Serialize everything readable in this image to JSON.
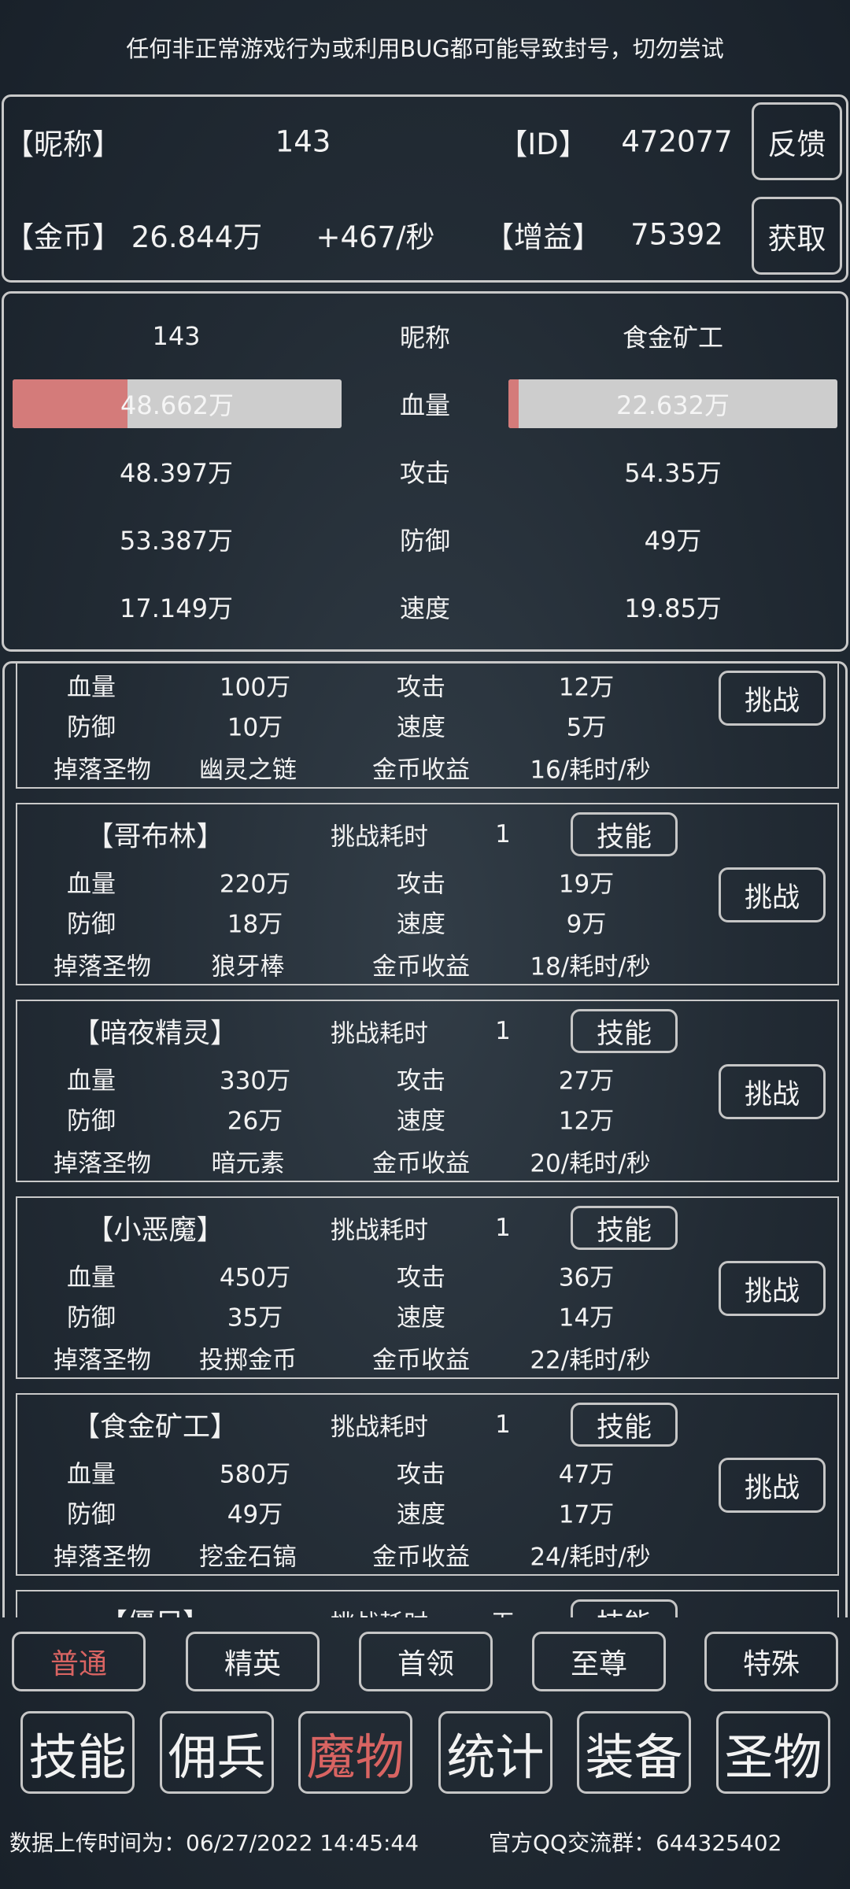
{
  "notice": "任何非正常游戏行为或利用BUG都可能导致封号，切勿尝试",
  "player_info": {
    "nickname_label": "【昵称】",
    "nickname": "143",
    "id_label": "【ID】",
    "id": "472077",
    "feedback_button": "反馈",
    "gold_label": "【金币】",
    "gold": "26.844万",
    "gold_rate": "+467/秒",
    "buff_label": "【增益】",
    "buff": "75392",
    "obtain_button": "获取"
  },
  "battle": {
    "labels": [
      "昵称",
      "血量",
      "攻击",
      "防御",
      "速度"
    ],
    "player": {
      "name": "143",
      "hp": "48.662万",
      "hp_fraction": 0.35,
      "attack": "48.397万",
      "defense": "53.387万",
      "speed": "17.149万"
    },
    "enemy": {
      "name": "食金矿工",
      "hp": "22.632万",
      "hp_fraction": 0.03,
      "attack": "54.35万",
      "defense": "49万",
      "speed": "19.85万"
    }
  },
  "monster_labels": {
    "hp": "血量",
    "attack": "攻击",
    "defense": "防御",
    "speed": "速度",
    "drop": "掉落圣物",
    "income": "金币收益",
    "time": "挑战耗时",
    "skill_button": "技能",
    "challenge_button": "挑战"
  },
  "monsters": [
    {
      "name": "",
      "time": "",
      "hp": "100万",
      "attack": "12万",
      "defense": "10万",
      "speed": "5万",
      "drop": "幽灵之链",
      "income": "16/耗时/秒"
    },
    {
      "name": "【哥布林】",
      "time": "1",
      "hp": "220万",
      "attack": "19万",
      "defense": "18万",
      "speed": "9万",
      "drop": "狼牙棒",
      "income": "18/耗时/秒"
    },
    {
      "name": "【暗夜精灵】",
      "time": "1",
      "hp": "330万",
      "attack": "27万",
      "defense": "26万",
      "speed": "12万",
      "drop": "暗元素",
      "income": "20/耗时/秒"
    },
    {
      "name": "【小恶魔】",
      "time": "1",
      "hp": "450万",
      "attack": "36万",
      "defense": "35万",
      "speed": "14万",
      "drop": "投掷金币",
      "income": "22/耗时/秒"
    },
    {
      "name": "【食金矿工】",
      "time": "1",
      "hp": "580万",
      "attack": "47万",
      "defense": "49万",
      "speed": "17万",
      "drop": "挖金石镐",
      "income": "24/耗时/秒"
    },
    {
      "name": "【僵尸】",
      "time": "无",
      "hp": "",
      "attack": "",
      "defense": "",
      "speed": "",
      "drop": "",
      "income": ""
    }
  ],
  "difficulty_tabs": [
    {
      "label": "普通",
      "active": true
    },
    {
      "label": "精英"
    },
    {
      "label": "首领"
    },
    {
      "label": "至尊"
    },
    {
      "label": "特殊"
    }
  ],
  "nav": [
    {
      "label": "技能"
    },
    {
      "label": "佣兵"
    },
    {
      "label": "魔物",
      "active": true
    },
    {
      "label": "统计"
    },
    {
      "label": "装备"
    },
    {
      "label": "圣物"
    }
  ],
  "footer": {
    "upload_time": "数据上传时间为：06/27/2022 14:45:44",
    "qq_group": "官方QQ交流群：644325402"
  },
  "colors": {
    "accent": "#d96462",
    "hp_fill": "#d47b7a",
    "border": "#c9c9c9"
  }
}
